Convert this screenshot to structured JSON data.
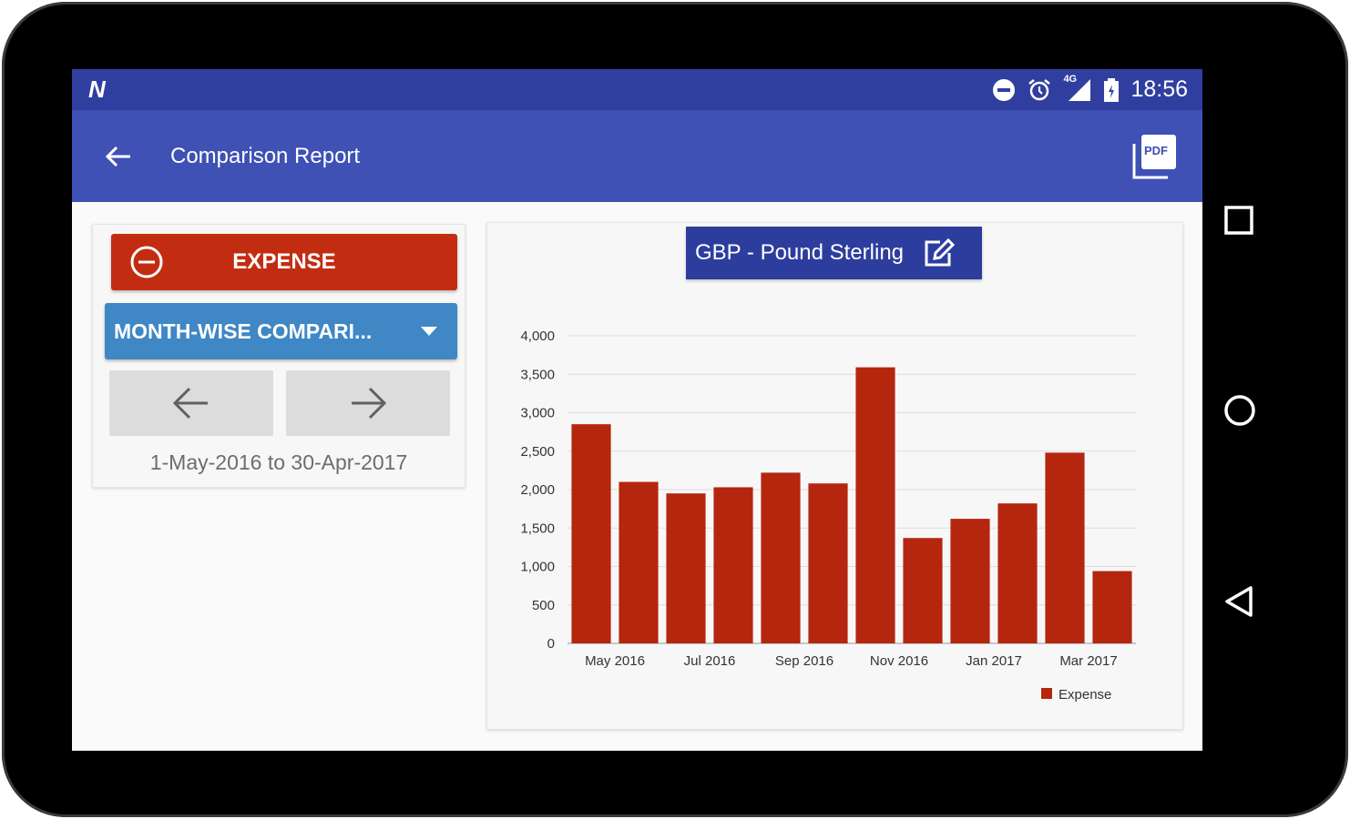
{
  "status_bar": {
    "time": "18:56",
    "network": "4G",
    "icons": [
      "dnd-icon",
      "alarm-icon",
      "signal-icon",
      "battery-icon"
    ]
  },
  "app_bar": {
    "title": "Comparison Report",
    "back_icon": "back-arrow-icon",
    "pdf_icon": "PDF"
  },
  "controls": {
    "type_button": "EXPENSE",
    "comparison_dropdown": "MONTH-WISE COMPARI...",
    "prev_icon": "arrow-left-icon",
    "next_icon": "arrow-right-icon",
    "date_range": "1-May-2016 to 30-Apr-2017"
  },
  "currency": {
    "label": "GBP - Pound Sterling",
    "edit_icon": "edit-icon"
  },
  "colors": {
    "status_bar": "#303f9f",
    "app_bar": "#3f51b5",
    "expense": "#c22d12",
    "dropdown": "#3f87c5",
    "currency": "#2d3d9e",
    "bar": "#b5260e"
  },
  "chart_data": {
    "type": "bar",
    "categories": [
      "May 2016",
      "Jun 2016",
      "Jul 2016",
      "Aug 2016",
      "Sep 2016",
      "Oct 2016",
      "Nov 2016",
      "Dec 2016",
      "Jan 2017",
      "Feb 2017",
      "Mar 2017",
      "Apr 2017"
    ],
    "x_tick_labels": [
      "May 2016",
      "Jul 2016",
      "Sep 2016",
      "Nov 2016",
      "Jan 2017",
      "Mar 2017"
    ],
    "series": [
      {
        "name": "Expense",
        "values": [
          2850,
          2100,
          1950,
          2030,
          2220,
          2080,
          3590,
          1370,
          1620,
          1820,
          2480,
          940
        ]
      }
    ],
    "ylim": [
      0,
      4000
    ],
    "y_ticks": [
      0,
      500,
      1000,
      1500,
      2000,
      2500,
      3000,
      3500,
      4000
    ],
    "y_tick_labels": [
      "0",
      "500",
      "1,000",
      "1,500",
      "2,000",
      "2,500",
      "3,000",
      "3,500",
      "4,000"
    ],
    "grid": true,
    "legend": "bottom-right"
  },
  "nav_bar": {
    "icons": [
      "overview-square-icon",
      "home-circle-icon",
      "back-triangle-icon"
    ]
  }
}
